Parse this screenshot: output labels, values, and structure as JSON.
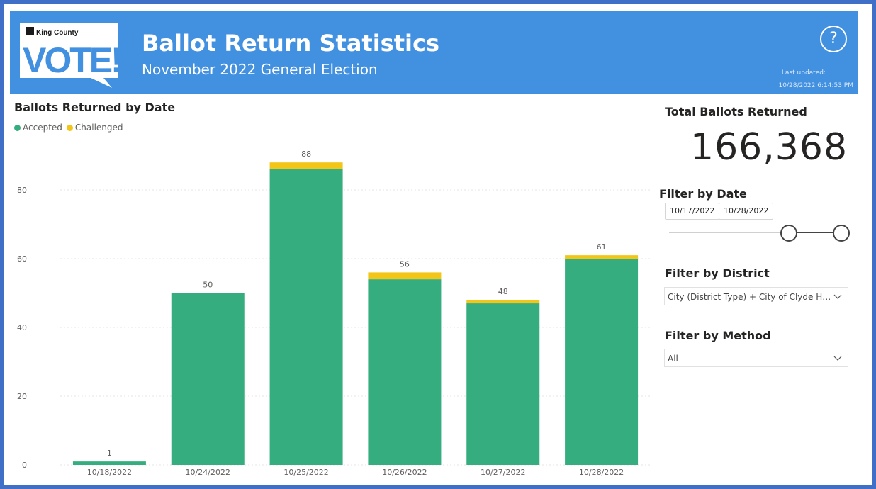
{
  "header": {
    "logo_small": "King County",
    "logo_big": "VOTE!",
    "title": "Ballot Return Statistics",
    "subtitle": "November 2022 General Election",
    "help_icon": "question-circle-icon",
    "updated_label": "Last updated:",
    "updated_value": "10/28/2022 6:14:53 PM"
  },
  "colors": {
    "header_bg": "#4290e0",
    "frame": "#3f6fc7",
    "accepted": "#35ad7e",
    "challenged": "#f2c517"
  },
  "chart_data": {
    "type": "bar",
    "stacked": true,
    "title": "Ballots Returned by Date",
    "xlabel": "",
    "ylabel": "",
    "ylim": [
      0,
      92
    ],
    "yticks": [
      0,
      20,
      40,
      60,
      80
    ],
    "grid": true,
    "legend_position": "top-left",
    "categories": [
      "10/18/2022",
      "10/24/2022",
      "10/25/2022",
      "10/26/2022",
      "10/27/2022",
      "10/28/2022"
    ],
    "series": [
      {
        "name": "Accepted",
        "values": [
          1,
          50,
          86,
          54,
          47,
          60
        ]
      },
      {
        "name": "Challenged",
        "values": [
          0,
          0,
          2,
          2,
          1,
          1
        ]
      }
    ],
    "totals": [
      1,
      50,
      88,
      56,
      48,
      61
    ]
  },
  "total_card": {
    "title": "Total Ballots Returned",
    "value": "166,368"
  },
  "date_filter": {
    "title": "Filter by Date",
    "start": "10/17/2022",
    "end": "10/28/2022"
  },
  "district_filter": {
    "title": "Filter by District",
    "value": "City (District Type) + City of Clyde Hill (Dis...",
    "icon": "chevron-down-icon"
  },
  "method_filter": {
    "title": "Filter by Method",
    "value": "All",
    "icon": "chevron-down-icon"
  }
}
